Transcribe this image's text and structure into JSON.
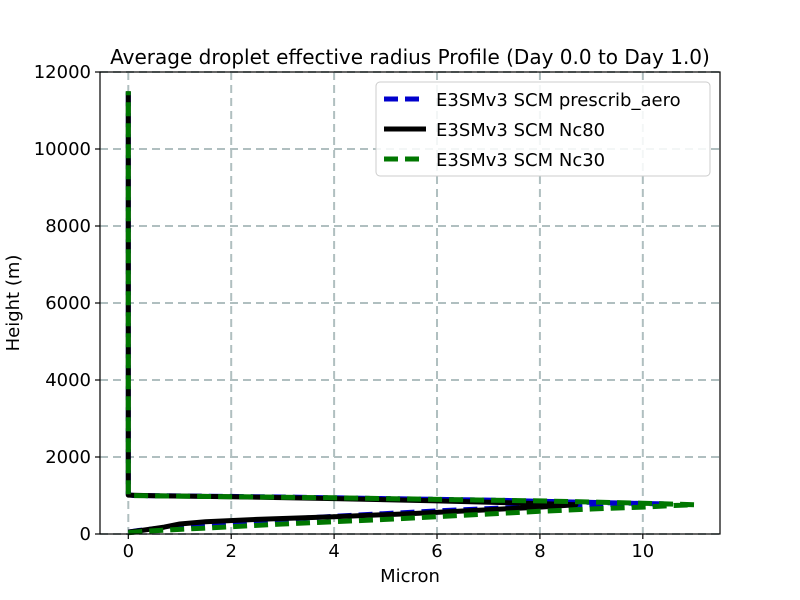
{
  "chart_data": {
    "type": "line",
    "title": "Average droplet effective radius Profile (Day 0.0 to Day 1.0)",
    "xlabel": "Micron",
    "ylabel": "Height (m)",
    "xlim": [
      -0.55,
      11.5
    ],
    "ylim": [
      0,
      12000
    ],
    "xticks": [
      0,
      2,
      4,
      6,
      8,
      10
    ],
    "yticks": [
      0,
      2000,
      4000,
      6000,
      8000,
      10000,
      12000
    ],
    "grid": true,
    "legend_position": "top-right",
    "series": [
      {
        "name": "E3SMv3 SCM prescrib_aero",
        "color": "#0000cc",
        "style": "dashed",
        "points": [
          [
            0,
            50
          ],
          [
            0.2,
            90
          ],
          [
            0.6,
            150
          ],
          [
            1,
            210
          ],
          [
            2,
            300
          ],
          [
            3,
            380
          ],
          [
            4,
            460
          ],
          [
            5,
            530
          ],
          [
            6,
            600
          ],
          [
            7,
            660
          ],
          [
            8,
            720
          ],
          [
            9,
            760
          ],
          [
            10,
            780
          ],
          [
            10.5,
            780
          ],
          [
            9,
            820
          ],
          [
            7,
            880
          ],
          [
            5,
            920
          ],
          [
            3,
            960
          ],
          [
            1,
            990
          ],
          [
            0.1,
            1000
          ],
          [
            0,
            1020
          ],
          [
            0,
            2000
          ],
          [
            0,
            5000
          ],
          [
            0,
            8000
          ],
          [
            0,
            11500
          ]
        ]
      },
      {
        "name": "E3SMv3 SCM Nc80",
        "color": "#000000",
        "style": "solid",
        "points": [
          [
            0,
            50
          ],
          [
            0.3,
            100
          ],
          [
            0.7,
            180
          ],
          [
            1,
            260
          ],
          [
            1.5,
            320
          ],
          [
            2.5,
            380
          ],
          [
            4,
            450
          ],
          [
            5.5,
            530
          ],
          [
            7,
            630
          ],
          [
            8,
            700
          ],
          [
            8.7,
            760
          ],
          [
            8,
            790
          ],
          [
            6,
            860
          ],
          [
            4,
            920
          ],
          [
            2,
            970
          ],
          [
            0.5,
            995
          ],
          [
            0,
            1010
          ],
          [
            0,
            2000
          ],
          [
            0,
            5000
          ],
          [
            0,
            8000
          ],
          [
            0,
            11500
          ]
        ]
      },
      {
        "name": "E3SMv3 SCM Nc30",
        "color": "#007700",
        "style": "dashed",
        "points": [
          [
            0,
            30
          ],
          [
            0.3,
            70
          ],
          [
            1,
            120
          ],
          [
            2,
            190
          ],
          [
            3,
            260
          ],
          [
            4,
            320
          ],
          [
            5,
            380
          ],
          [
            6,
            450
          ],
          [
            7,
            520
          ],
          [
            8,
            590
          ],
          [
            9,
            650
          ],
          [
            10,
            700
          ],
          [
            10.6,
            740
          ],
          [
            11,
            760
          ],
          [
            10,
            800
          ],
          [
            8,
            860
          ],
          [
            6,
            900
          ],
          [
            4,
            940
          ],
          [
            2,
            970
          ],
          [
            0.5,
            990
          ],
          [
            0,
            1000
          ],
          [
            0,
            2000
          ],
          [
            0,
            5000
          ],
          [
            0,
            8000
          ],
          [
            0,
            11500
          ]
        ]
      }
    ]
  }
}
